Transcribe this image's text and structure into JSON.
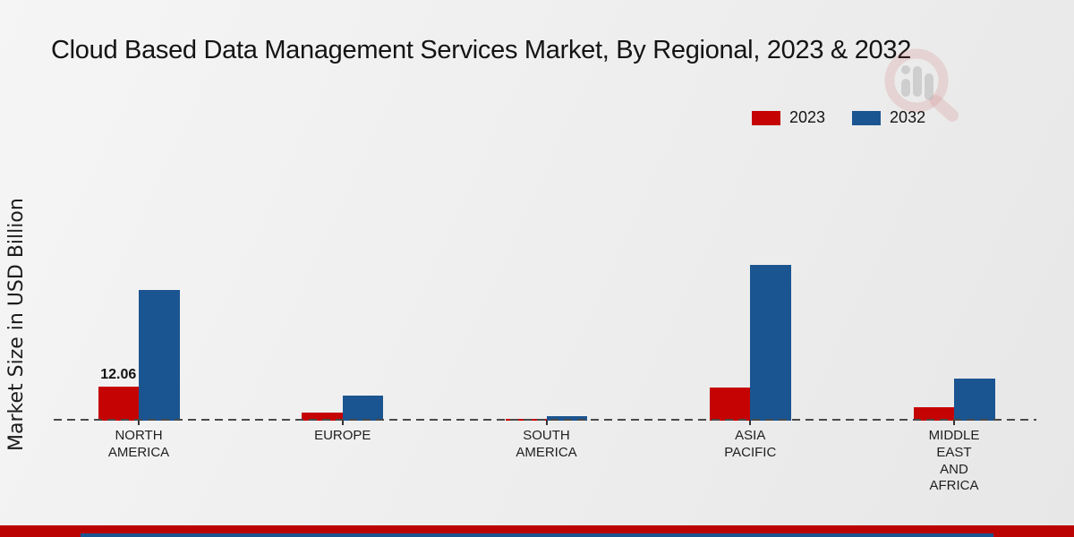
{
  "title": "Cloud Based Data Management Services Market, By Regional, 2023 & 2032",
  "y_axis_label": "Market Size in USD Billion",
  "legend": {
    "items": [
      {
        "label": "2023",
        "color": "#C50303"
      },
      {
        "label": "2032",
        "color": "#1B5591"
      }
    ]
  },
  "chart_data": {
    "type": "bar",
    "categories": [
      "NORTH\nAMERICA",
      "EUROPE",
      "SOUTH\nAMERICA",
      "ASIA\nPACIFIC",
      "MIDDLE\nEAST\nAND\nAFRICA"
    ],
    "series": [
      {
        "name": "2023",
        "color": "#C50303",
        "values": [
          12.06,
          2.7,
          0.6,
          11.9,
          4.7
        ]
      },
      {
        "name": "2032",
        "color": "#1B5591",
        "values": [
          46.3,
          8.8,
          1.5,
          55.2,
          14.8
        ]
      }
    ],
    "data_labels": [
      "12.06",
      "",
      "",
      "",
      ""
    ],
    "ylabel": "Market Size in USD Billion",
    "ylim": [
      0,
      60
    ],
    "grid": false,
    "baseline_style": "dashed",
    "legend_position": "top-right"
  },
  "watermark": {
    "icon": "magnifier-bar-chart-logo"
  },
  "footer": {
    "red_band_color": "#BC0303",
    "blue_band_color": "#1B5591"
  }
}
